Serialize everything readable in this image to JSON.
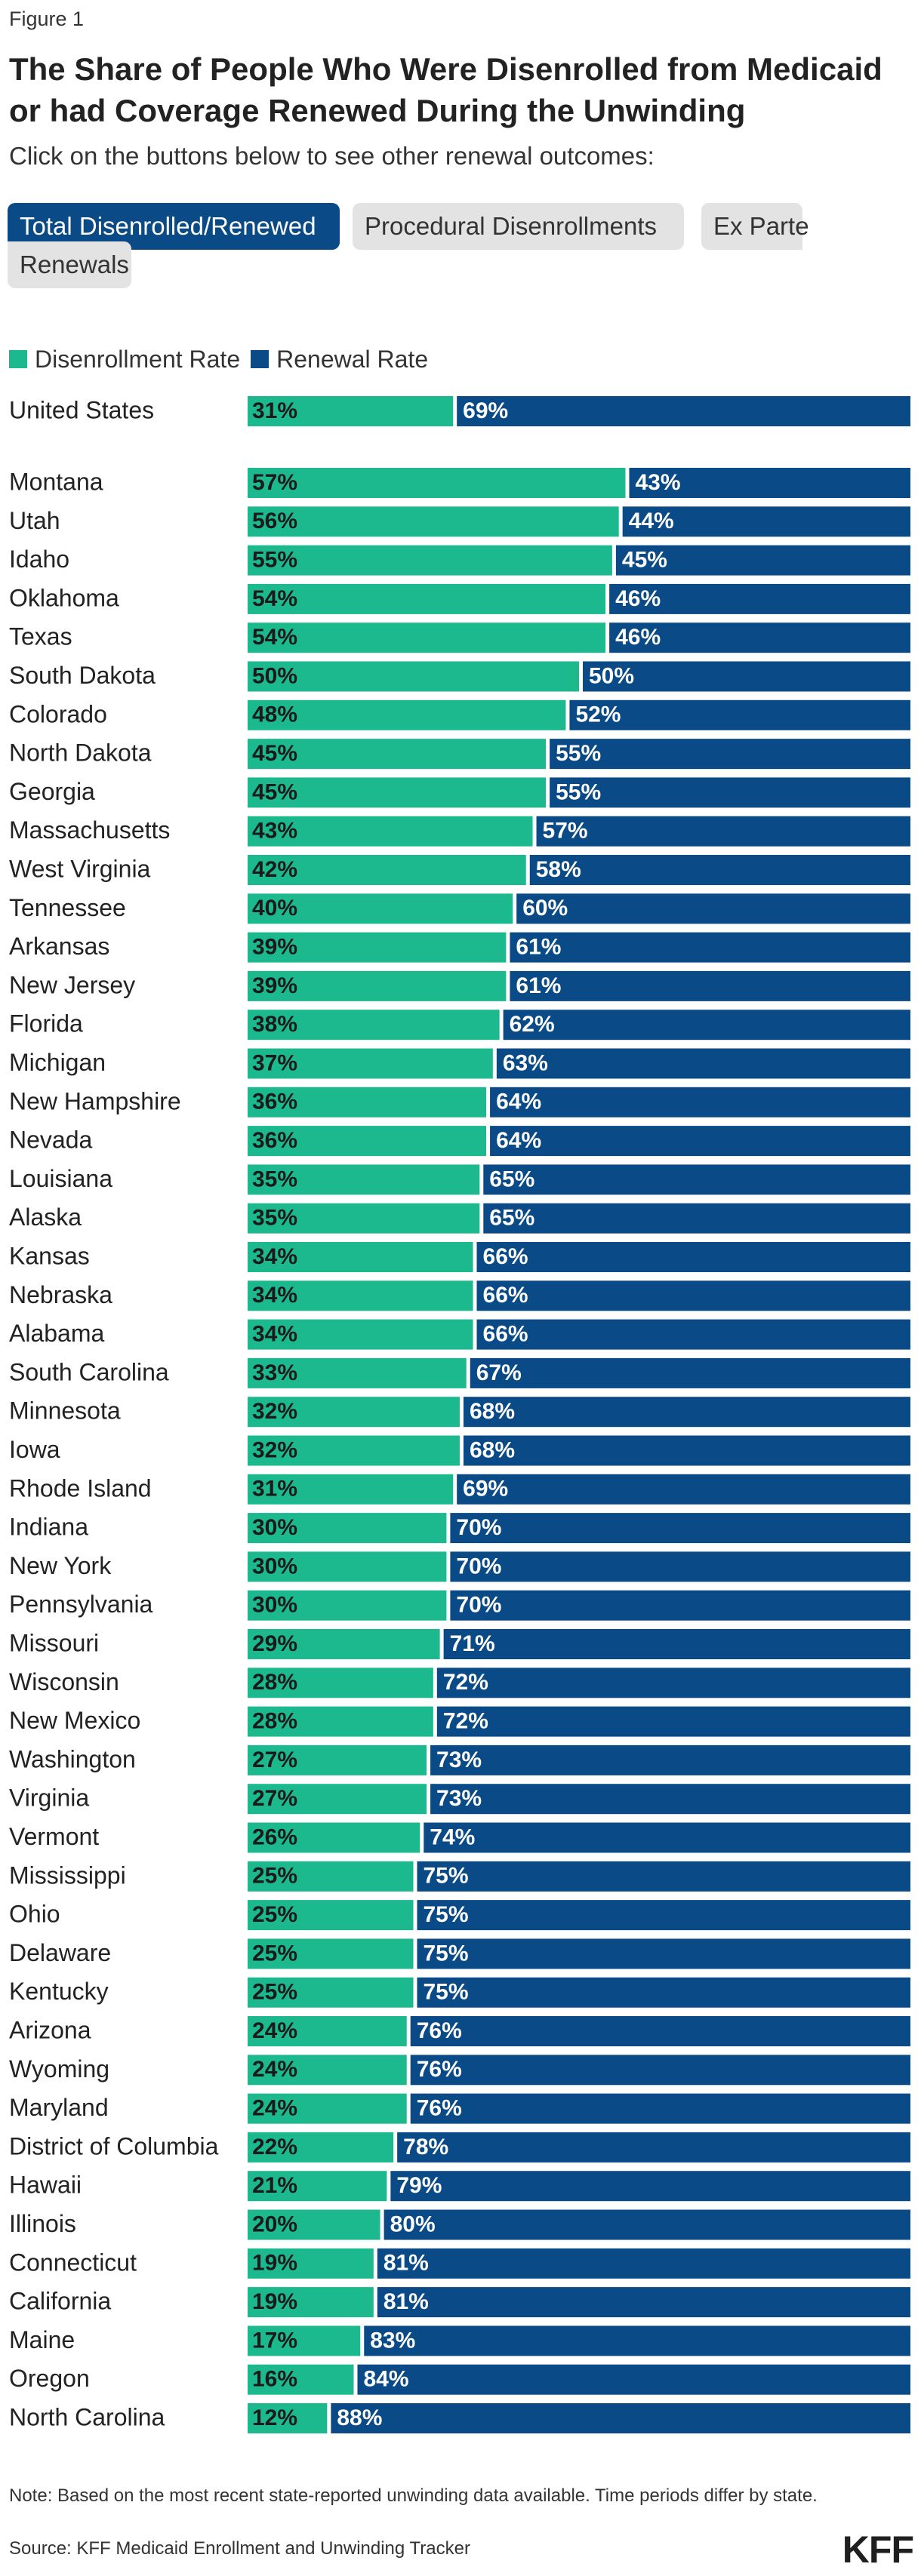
{
  "figure_label": "Figure 1",
  "title": "The Share of People Who Were Disenrolled from Medicaid or had Coverage Renewed During the Unwinding",
  "subtitle": "Click on the buttons below to see other renewal outcomes:",
  "tabs": {
    "total": "Total Disenrolled/Renewed",
    "procedural": "Procedural Disenrollments",
    "ex_parte_line1": "Ex Parte",
    "ex_parte_line2": "Renewals"
  },
  "colors": {
    "disenrollment": "#1cb98f",
    "renewal": "#0a4a86",
    "active_tab": "#0a4a86"
  },
  "note": "Note: Based on the most recent state-reported unwinding data available. Time periods differ by state.",
  "source": "Source: KFF Medicaid Enrollment and Unwinding Tracker",
  "logo": "KFF",
  "chart_data": {
    "type": "bar",
    "orientation": "horizontal",
    "stacked": true,
    "title": "The Share of People Who Were Disenrolled from Medicaid or had Coverage Renewed During the Unwinding",
    "xlim": [
      0,
      100
    ],
    "unit": "%",
    "legend_position": "top-left",
    "grid": false,
    "series": [
      {
        "name": "Disenrollment Rate",
        "color": "#1cb98f"
      },
      {
        "name": "Renewal Rate",
        "color": "#0a4a86"
      }
    ],
    "rows": [
      {
        "label": "United States",
        "disenrollment": 31,
        "renewal": 69
      },
      {
        "label": "Montana",
        "disenrollment": 57,
        "renewal": 43
      },
      {
        "label": "Utah",
        "disenrollment": 56,
        "renewal": 44
      },
      {
        "label": "Idaho",
        "disenrollment": 55,
        "renewal": 45
      },
      {
        "label": "Oklahoma",
        "disenrollment": 54,
        "renewal": 46
      },
      {
        "label": "Texas",
        "disenrollment": 54,
        "renewal": 46
      },
      {
        "label": "South Dakota",
        "disenrollment": 50,
        "renewal": 50
      },
      {
        "label": "Colorado",
        "disenrollment": 48,
        "renewal": 52
      },
      {
        "label": "North Dakota",
        "disenrollment": 45,
        "renewal": 55
      },
      {
        "label": "Georgia",
        "disenrollment": 45,
        "renewal": 55
      },
      {
        "label": "Massachusetts",
        "disenrollment": 43,
        "renewal": 57
      },
      {
        "label": "West Virginia",
        "disenrollment": 42,
        "renewal": 58
      },
      {
        "label": "Tennessee",
        "disenrollment": 40,
        "renewal": 60
      },
      {
        "label": "Arkansas",
        "disenrollment": 39,
        "renewal": 61
      },
      {
        "label": "New Jersey",
        "disenrollment": 39,
        "renewal": 61
      },
      {
        "label": "Florida",
        "disenrollment": 38,
        "renewal": 62
      },
      {
        "label": "Michigan",
        "disenrollment": 37,
        "renewal": 63
      },
      {
        "label": "New Hampshire",
        "disenrollment": 36,
        "renewal": 64
      },
      {
        "label": "Nevada",
        "disenrollment": 36,
        "renewal": 64
      },
      {
        "label": "Louisiana",
        "disenrollment": 35,
        "renewal": 65
      },
      {
        "label": "Alaska",
        "disenrollment": 35,
        "renewal": 65
      },
      {
        "label": "Kansas",
        "disenrollment": 34,
        "renewal": 66
      },
      {
        "label": "Nebraska",
        "disenrollment": 34,
        "renewal": 66
      },
      {
        "label": "Alabama",
        "disenrollment": 34,
        "renewal": 66
      },
      {
        "label": "South Carolina",
        "disenrollment": 33,
        "renewal": 67
      },
      {
        "label": "Minnesota",
        "disenrollment": 32,
        "renewal": 68
      },
      {
        "label": "Iowa",
        "disenrollment": 32,
        "renewal": 68
      },
      {
        "label": "Rhode Island",
        "disenrollment": 31,
        "renewal": 69
      },
      {
        "label": "Indiana",
        "disenrollment": 30,
        "renewal": 70
      },
      {
        "label": "New York",
        "disenrollment": 30,
        "renewal": 70
      },
      {
        "label": "Pennsylvania",
        "disenrollment": 30,
        "renewal": 70
      },
      {
        "label": "Missouri",
        "disenrollment": 29,
        "renewal": 71
      },
      {
        "label": "Wisconsin",
        "disenrollment": 28,
        "renewal": 72
      },
      {
        "label": "New Mexico",
        "disenrollment": 28,
        "renewal": 72
      },
      {
        "label": "Washington",
        "disenrollment": 27,
        "renewal": 73
      },
      {
        "label": "Virginia",
        "disenrollment": 27,
        "renewal": 73
      },
      {
        "label": "Vermont",
        "disenrollment": 26,
        "renewal": 74
      },
      {
        "label": "Mississippi",
        "disenrollment": 25,
        "renewal": 75
      },
      {
        "label": "Ohio",
        "disenrollment": 25,
        "renewal": 75
      },
      {
        "label": "Delaware",
        "disenrollment": 25,
        "renewal": 75
      },
      {
        "label": "Kentucky",
        "disenrollment": 25,
        "renewal": 75
      },
      {
        "label": "Arizona",
        "disenrollment": 24,
        "renewal": 76
      },
      {
        "label": "Wyoming",
        "disenrollment": 24,
        "renewal": 76
      },
      {
        "label": "Maryland",
        "disenrollment": 24,
        "renewal": 76
      },
      {
        "label": "District of Columbia",
        "disenrollment": 22,
        "renewal": 78
      },
      {
        "label": "Hawaii",
        "disenrollment": 21,
        "renewal": 79
      },
      {
        "label": "Illinois",
        "disenrollment": 20,
        "renewal": 80
      },
      {
        "label": "Connecticut",
        "disenrollment": 19,
        "renewal": 81
      },
      {
        "label": "California",
        "disenrollment": 19,
        "renewal": 81
      },
      {
        "label": "Maine",
        "disenrollment": 17,
        "renewal": 83
      },
      {
        "label": "Oregon",
        "disenrollment": 16,
        "renewal": 84
      },
      {
        "label": "North Carolina",
        "disenrollment": 12,
        "renewal": 88
      }
    ]
  }
}
